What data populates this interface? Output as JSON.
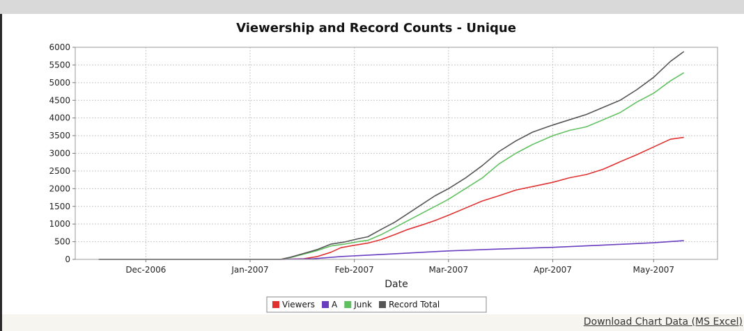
{
  "download_link": "Download Chart Data (MS Excel)",
  "chart_data": {
    "type": "line",
    "title": "Viewership and Record Counts - Unique",
    "xlabel": "Date",
    "ylabel": "",
    "ylim": [
      0,
      6000
    ],
    "xlim": [
      "2006-11-10",
      "2007-05-20"
    ],
    "yticks": [
      "0",
      "500",
      "1000",
      "1500",
      "2000",
      "2500",
      "3000",
      "3500",
      "4000",
      "4500",
      "5000",
      "5500",
      "6000"
    ],
    "xticks": [
      {
        "date": "2006-12-01",
        "label": "Dec-2006"
      },
      {
        "date": "2007-01-01",
        "label": "Jan-2007"
      },
      {
        "date": "2007-02-01",
        "label": "Feb-2007"
      },
      {
        "date": "2007-03-01",
        "label": "Mar-2007"
      },
      {
        "date": "2007-04-01",
        "label": "Apr-2007"
      },
      {
        "date": "2007-05-01",
        "label": "May-2007"
      }
    ],
    "grid": true,
    "legend_position": "bottom-center",
    "series": [
      {
        "name": "Viewers",
        "color": "#e03030",
        "points": [
          [
            "2006-11-17",
            0
          ],
          [
            "2007-01-10",
            0
          ],
          [
            "2007-01-17",
            20
          ],
          [
            "2007-01-21",
            80
          ],
          [
            "2007-01-25",
            200
          ],
          [
            "2007-01-28",
            330
          ],
          [
            "2007-02-01",
            400
          ],
          [
            "2007-02-05",
            460
          ],
          [
            "2007-02-09",
            560
          ],
          [
            "2007-02-13",
            700
          ],
          [
            "2007-02-17",
            850
          ],
          [
            "2007-02-21",
            970
          ],
          [
            "2007-02-25",
            1100
          ],
          [
            "2007-03-01",
            1250
          ],
          [
            "2007-03-06",
            1450
          ],
          [
            "2007-03-11",
            1650
          ],
          [
            "2007-03-16",
            1800
          ],
          [
            "2007-03-21",
            1960
          ],
          [
            "2007-03-26",
            2060
          ],
          [
            "2007-04-01",
            2180
          ],
          [
            "2007-04-06",
            2310
          ],
          [
            "2007-04-11",
            2400
          ],
          [
            "2007-04-16",
            2550
          ],
          [
            "2007-04-21",
            2760
          ],
          [
            "2007-04-26",
            2960
          ],
          [
            "2007-05-01",
            3180
          ],
          [
            "2007-05-06",
            3400
          ],
          [
            "2007-05-10",
            3450
          ]
        ]
      },
      {
        "name": "A",
        "color": "#6a3cc0",
        "points": [
          [
            "2006-11-17",
            0
          ],
          [
            "2007-01-10",
            0
          ],
          [
            "2007-01-20",
            20
          ],
          [
            "2007-01-28",
            80
          ],
          [
            "2007-02-05",
            120
          ],
          [
            "2007-02-15",
            170
          ],
          [
            "2007-03-01",
            240
          ],
          [
            "2007-03-15",
            290
          ],
          [
            "2007-04-01",
            340
          ],
          [
            "2007-04-15",
            400
          ],
          [
            "2007-05-01",
            470
          ],
          [
            "2007-05-10",
            530
          ]
        ]
      },
      {
        "name": "Junk",
        "color": "#60c060",
        "points": [
          [
            "2006-11-17",
            0
          ],
          [
            "2007-01-10",
            0
          ],
          [
            "2007-01-13",
            50
          ],
          [
            "2007-01-17",
            150
          ],
          [
            "2007-01-21",
            250
          ],
          [
            "2007-01-25",
            380
          ],
          [
            "2007-01-29",
            430
          ],
          [
            "2007-02-02",
            500
          ],
          [
            "2007-02-05",
            540
          ],
          [
            "2007-02-09",
            700
          ],
          [
            "2007-02-13",
            900
          ],
          [
            "2007-02-17",
            1100
          ],
          [
            "2007-02-21",
            1300
          ],
          [
            "2007-02-25",
            1500
          ],
          [
            "2007-03-01",
            1700
          ],
          [
            "2007-03-06",
            2000
          ],
          [
            "2007-03-11",
            2300
          ],
          [
            "2007-03-16",
            2700
          ],
          [
            "2007-03-21",
            3000
          ],
          [
            "2007-03-26",
            3250
          ],
          [
            "2007-04-01",
            3500
          ],
          [
            "2007-04-06",
            3650
          ],
          [
            "2007-04-11",
            3750
          ],
          [
            "2007-04-16",
            3950
          ],
          [
            "2007-04-21",
            4150
          ],
          [
            "2007-04-26",
            4450
          ],
          [
            "2007-05-01",
            4700
          ],
          [
            "2007-05-06",
            5050
          ],
          [
            "2007-05-10",
            5280
          ]
        ]
      },
      {
        "name": "Record Total",
        "color": "#555555",
        "points": [
          [
            "2006-11-17",
            0
          ],
          [
            "2007-01-10",
            0
          ],
          [
            "2007-01-13",
            60
          ],
          [
            "2007-01-17",
            170
          ],
          [
            "2007-01-21",
            280
          ],
          [
            "2007-01-25",
            430
          ],
          [
            "2007-01-29",
            490
          ],
          [
            "2007-02-02",
            580
          ],
          [
            "2007-02-05",
            640
          ],
          [
            "2007-02-09",
            850
          ],
          [
            "2007-02-13",
            1050
          ],
          [
            "2007-02-17",
            1300
          ],
          [
            "2007-02-21",
            1550
          ],
          [
            "2007-02-25",
            1800
          ],
          [
            "2007-03-01",
            2000
          ],
          [
            "2007-03-06",
            2300
          ],
          [
            "2007-03-11",
            2650
          ],
          [
            "2007-03-16",
            3050
          ],
          [
            "2007-03-21",
            3350
          ],
          [
            "2007-03-26",
            3600
          ],
          [
            "2007-04-01",
            3800
          ],
          [
            "2007-04-06",
            3950
          ],
          [
            "2007-04-11",
            4100
          ],
          [
            "2007-04-16",
            4300
          ],
          [
            "2007-04-21",
            4500
          ],
          [
            "2007-04-26",
            4800
          ],
          [
            "2007-05-01",
            5150
          ],
          [
            "2007-05-06",
            5600
          ],
          [
            "2007-05-10",
            5880
          ]
        ]
      }
    ]
  }
}
